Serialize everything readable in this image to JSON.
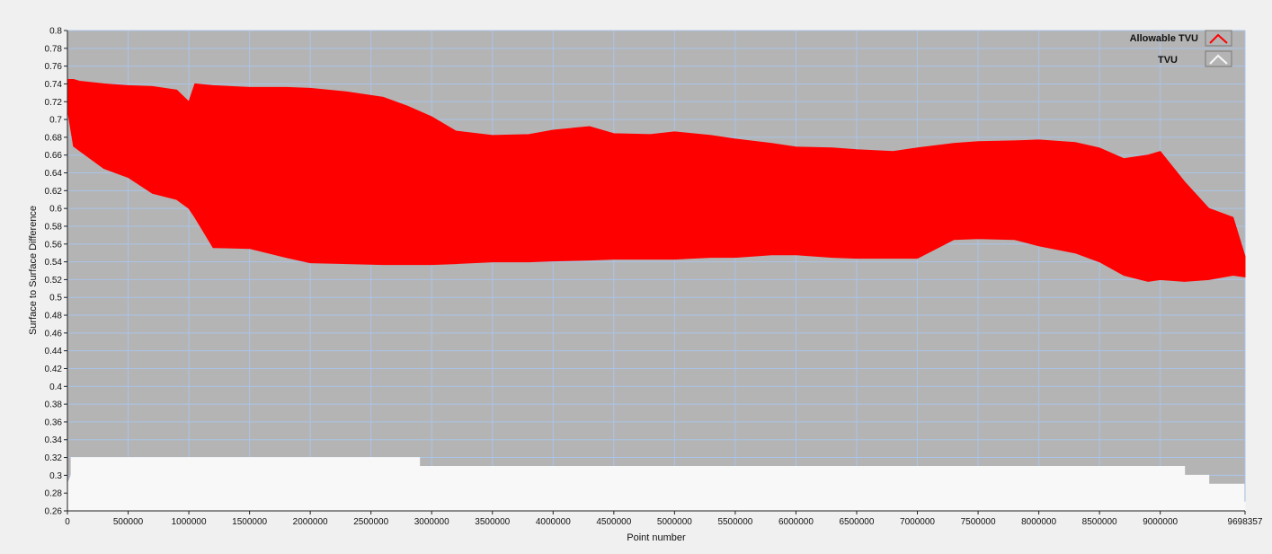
{
  "chart_data": {
    "type": "area",
    "title": "",
    "xlabel": "Point number",
    "ylabel": "Surface to Surface Difference",
    "xlim": [
      0,
      9698357
    ],
    "ylim": [
      0.26,
      0.8
    ],
    "grid": true,
    "legend_position": "top-right",
    "plot_background": "#b4b4b4",
    "grid_color": "#aac4e8",
    "x_ticks": [
      {
        "value": 0,
        "label": "0"
      },
      {
        "value": 500000,
        "label": "500000"
      },
      {
        "value": 1000000,
        "label": "1000000"
      },
      {
        "value": 1500000,
        "label": "1500000"
      },
      {
        "value": 2000000,
        "label": "2000000"
      },
      {
        "value": 2500000,
        "label": "2500000"
      },
      {
        "value": 3000000,
        "label": "3000000"
      },
      {
        "value": 3500000,
        "label": "3500000"
      },
      {
        "value": 4000000,
        "label": "4000000"
      },
      {
        "value": 4500000,
        "label": "4500000"
      },
      {
        "value": 5000000,
        "label": "5000000"
      },
      {
        "value": 5500000,
        "label": "5500000"
      },
      {
        "value": 6000000,
        "label": "6000000"
      },
      {
        "value": 6500000,
        "label": "6500000"
      },
      {
        "value": 7000000,
        "label": "7000000"
      },
      {
        "value": 7500000,
        "label": "7500000"
      },
      {
        "value": 8000000,
        "label": "8000000"
      },
      {
        "value": 8500000,
        "label": "8500000"
      },
      {
        "value": 9000000,
        "label": "9000000"
      },
      {
        "value": 9698357,
        "label": "9698357"
      }
    ],
    "y_ticks": [
      {
        "value": 0.26,
        "label": "0.26"
      },
      {
        "value": 0.28,
        "label": "0.28"
      },
      {
        "value": 0.3,
        "label": "0.3"
      },
      {
        "value": 0.32,
        "label": "0.32"
      },
      {
        "value": 0.34,
        "label": "0.34"
      },
      {
        "value": 0.36,
        "label": "0.36"
      },
      {
        "value": 0.38,
        "label": "0.38"
      },
      {
        "value": 0.4,
        "label": "0.4"
      },
      {
        "value": 0.42,
        "label": "0.42"
      },
      {
        "value": 0.44,
        "label": "0.44"
      },
      {
        "value": 0.46,
        "label": "0.46"
      },
      {
        "value": 0.48,
        "label": "0.48"
      },
      {
        "value": 0.5,
        "label": "0.5"
      },
      {
        "value": 0.52,
        "label": "0.52"
      },
      {
        "value": 0.54,
        "label": "0.54"
      },
      {
        "value": 0.56,
        "label": "0.56"
      },
      {
        "value": 0.58,
        "label": "0.58"
      },
      {
        "value": 0.6,
        "label": "0.6"
      },
      {
        "value": 0.62,
        "label": "0.62"
      },
      {
        "value": 0.64,
        "label": "0.64"
      },
      {
        "value": 0.66,
        "label": "0.66"
      },
      {
        "value": 0.68,
        "label": "0.68"
      },
      {
        "value": 0.7,
        "label": "0.7"
      },
      {
        "value": 0.72,
        "label": "0.72"
      },
      {
        "value": 0.74,
        "label": "0.74"
      },
      {
        "value": 0.76,
        "label": "0.76"
      },
      {
        "value": 0.78,
        "label": "0.78"
      },
      {
        "value": 0.8,
        "label": "0.8"
      }
    ],
    "series": [
      {
        "name": "Allowable TVU",
        "color": "#ff0000",
        "style": "envelope",
        "x": [
          0,
          50000,
          100000,
          300000,
          500000,
          700000,
          900000,
          1000000,
          1050000,
          1200000,
          1500000,
          1800000,
          2000000,
          2300000,
          2600000,
          2800000,
          3000000,
          3200000,
          3500000,
          3800000,
          4000000,
          4300000,
          4500000,
          4800000,
          5000000,
          5300000,
          5500000,
          5800000,
          6000000,
          6300000,
          6500000,
          6800000,
          7000000,
          7300000,
          7500000,
          7800000,
          8000000,
          8300000,
          8500000,
          8700000,
          8900000,
          9000000,
          9200000,
          9400000,
          9600000,
          9698357
        ],
        "upper": [
          0.745,
          0.745,
          0.743,
          0.74,
          0.738,
          0.737,
          0.733,
          0.72,
          0.74,
          0.738,
          0.736,
          0.736,
          0.735,
          0.731,
          0.725,
          0.715,
          0.703,
          0.687,
          0.682,
          0.683,
          0.688,
          0.692,
          0.684,
          0.683,
          0.686,
          0.682,
          0.678,
          0.673,
          0.669,
          0.668,
          0.666,
          0.664,
          0.668,
          0.673,
          0.675,
          0.676,
          0.677,
          0.674,
          0.668,
          0.656,
          0.66,
          0.664,
          0.63,
          0.6,
          0.59,
          0.546
        ],
        "lower": [
          0.712,
          0.67,
          0.665,
          0.645,
          0.635,
          0.617,
          0.61,
          0.6,
          0.59,
          0.556,
          0.555,
          0.545,
          0.539,
          0.538,
          0.537,
          0.537,
          0.537,
          0.538,
          0.54,
          0.54,
          0.541,
          0.542,
          0.543,
          0.543,
          0.543,
          0.545,
          0.545,
          0.548,
          0.548,
          0.545,
          0.544,
          0.544,
          0.544,
          0.565,
          0.566,
          0.565,
          0.558,
          0.55,
          0.54,
          0.525,
          0.518,
          0.52,
          0.518,
          0.52,
          0.525,
          0.523
        ]
      },
      {
        "name": "TVU",
        "color": "#f8f8f8",
        "style": "filled",
        "x": [
          0,
          30000,
          30000,
          2900000,
          2900000,
          7000000,
          7000000,
          9200000,
          9200000,
          9400000,
          9400000,
          9690000,
          9690000,
          9698357
        ],
        "values": [
          0.29,
          0.3,
          0.32,
          0.32,
          0.31,
          0.31,
          0.31,
          0.31,
          0.3,
          0.3,
          0.29,
          0.29,
          0.27,
          0.27
        ]
      }
    ]
  }
}
